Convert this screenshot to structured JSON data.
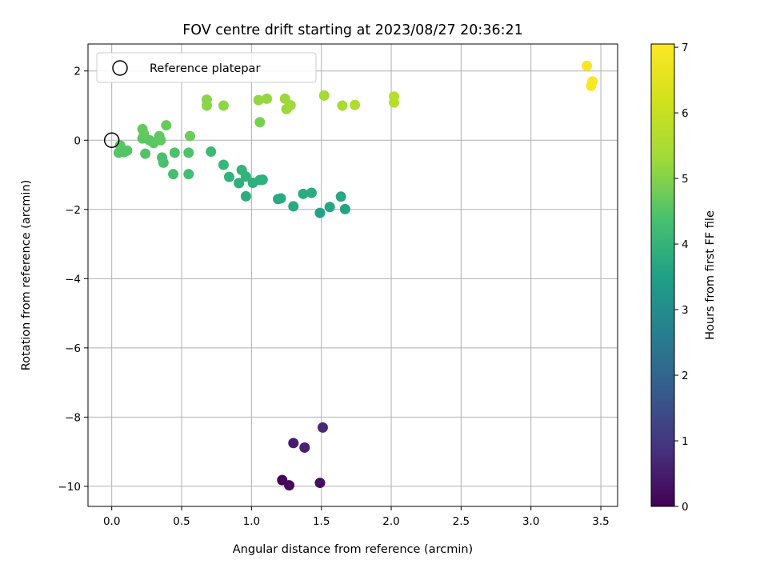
{
  "chart_data": {
    "type": "scatter",
    "title": "FOV centre drift starting at 2023/08/27 20:36:21",
    "xlabel": "Angular distance from reference (arcmin)",
    "ylabel": "Rotation from reference (arcmin)",
    "xlim": [
      -0.17,
      3.62
    ],
    "ylim": [
      -10.58,
      2.78
    ],
    "xticks": [
      0.0,
      0.5,
      1.0,
      1.5,
      2.0,
      2.5,
      3.0,
      3.5
    ],
    "xtick_labels": [
      "0.0",
      "0.5",
      "1.0",
      "1.5",
      "2.0",
      "2.5",
      "3.0",
      "3.5"
    ],
    "yticks": [
      -10,
      -8,
      -6,
      -4,
      -2,
      0,
      2
    ],
    "ytick_labels": [
      "−10",
      "−8",
      "−6",
      "−4",
      "−2",
      "0",
      "2"
    ],
    "grid": true,
    "legend": {
      "position": "top-left",
      "label": "Reference platepar"
    },
    "reference_point": {
      "x": 0.0,
      "y": 0.0
    },
    "colorbar": {
      "label": "Hours from first FF file",
      "colormap": "viridis",
      "range": [
        0,
        7.05
      ],
      "ticks": [
        0,
        1,
        2,
        3,
        4,
        5,
        6,
        7
      ],
      "tick_labels": [
        "0",
        "1",
        "2",
        "3",
        "4",
        "5",
        "6",
        "7"
      ]
    },
    "points": [
      {
        "x": 1.22,
        "y": -9.82,
        "t": 0.05
      },
      {
        "x": 1.27,
        "y": -9.97,
        "t": 0.15
      },
      {
        "x": 1.49,
        "y": -9.9,
        "t": 0.3
      },
      {
        "x": 1.3,
        "y": -8.75,
        "t": 0.55
      },
      {
        "x": 1.38,
        "y": -8.88,
        "t": 0.65
      },
      {
        "x": 1.51,
        "y": -8.3,
        "t": 0.85
      },
      {
        "x": 1.49,
        "y": -2.1,
        "t": 4.05
      },
      {
        "x": 1.67,
        "y": -1.99,
        "t": 4.1
      },
      {
        "x": 1.56,
        "y": -1.93,
        "t": 4.15
      },
      {
        "x": 1.64,
        "y": -1.63,
        "t": 4.2
      },
      {
        "x": 1.3,
        "y": -1.91,
        "t": 4.25
      },
      {
        "x": 1.21,
        "y": -1.68,
        "t": 4.3
      },
      {
        "x": 1.19,
        "y": -1.7,
        "t": 4.3
      },
      {
        "x": 1.37,
        "y": -1.55,
        "t": 4.35
      },
      {
        "x": 1.43,
        "y": -1.52,
        "t": 4.35
      },
      {
        "x": 0.96,
        "y": -1.62,
        "t": 4.4
      },
      {
        "x": 0.91,
        "y": -1.24,
        "t": 4.45
      },
      {
        "x": 1.01,
        "y": -1.23,
        "t": 4.45
      },
      {
        "x": 1.06,
        "y": -1.15,
        "t": 4.5
      },
      {
        "x": 1.08,
        "y": -1.14,
        "t": 4.5
      },
      {
        "x": 0.96,
        "y": -1.05,
        "t": 4.55
      },
      {
        "x": 0.84,
        "y": -1.06,
        "t": 4.6
      },
      {
        "x": 0.93,
        "y": -0.86,
        "t": 4.6
      },
      {
        "x": 0.8,
        "y": -0.71,
        "t": 4.7
      },
      {
        "x": 0.71,
        "y": -0.33,
        "t": 4.8
      },
      {
        "x": 0.55,
        "y": -0.98,
        "t": 4.9
      },
      {
        "x": 0.44,
        "y": -0.98,
        "t": 4.95
      },
      {
        "x": 0.37,
        "y": -0.65,
        "t": 5.0
      },
      {
        "x": 0.36,
        "y": -0.5,
        "t": 5.0
      },
      {
        "x": 0.45,
        "y": -0.36,
        "t": 5.05
      },
      {
        "x": 0.55,
        "y": -0.36,
        "t": 5.05
      },
      {
        "x": 0.24,
        "y": -0.39,
        "t": 5.1
      },
      {
        "x": 0.05,
        "y": -0.36,
        "t": 5.15
      },
      {
        "x": 0.09,
        "y": -0.34,
        "t": 5.15
      },
      {
        "x": 0.11,
        "y": -0.3,
        "t": 5.15
      },
      {
        "x": 0.06,
        "y": -0.15,
        "t": 5.2
      },
      {
        "x": 0.22,
        "y": 0.05,
        "t": 5.25
      },
      {
        "x": 0.27,
        "y": 0.0,
        "t": 5.25
      },
      {
        "x": 0.3,
        "y": -0.08,
        "t": 5.25
      },
      {
        "x": 0.35,
        "y": 0.0,
        "t": 5.3
      },
      {
        "x": 0.34,
        "y": 0.12,
        "t": 5.3
      },
      {
        "x": 0.22,
        "y": 0.32,
        "t": 5.35
      },
      {
        "x": 0.23,
        "y": 0.18,
        "t": 5.35
      },
      {
        "x": 0.39,
        "y": 0.43,
        "t": 5.4
      },
      {
        "x": 0.56,
        "y": 0.12,
        "t": 5.45
      },
      {
        "x": 1.06,
        "y": 0.52,
        "t": 5.6
      },
      {
        "x": 0.68,
        "y": 1.17,
        "t": 5.8
      },
      {
        "x": 0.68,
        "y": 1.0,
        "t": 5.8
      },
      {
        "x": 0.8,
        "y": 1.0,
        "t": 5.85
      },
      {
        "x": 1.05,
        "y": 1.16,
        "t": 5.9
      },
      {
        "x": 1.11,
        "y": 1.2,
        "t": 5.95
      },
      {
        "x": 1.24,
        "y": 1.2,
        "t": 6.0
      },
      {
        "x": 1.25,
        "y": 0.9,
        "t": 6.0
      },
      {
        "x": 1.28,
        "y": 1.01,
        "t": 6.05
      },
      {
        "x": 1.52,
        "y": 1.29,
        "t": 6.1
      },
      {
        "x": 1.65,
        "y": 1.0,
        "t": 6.15
      },
      {
        "x": 1.74,
        "y": 1.02,
        "t": 6.2
      },
      {
        "x": 2.02,
        "y": 1.26,
        "t": 6.3
      },
      {
        "x": 2.02,
        "y": 1.09,
        "t": 6.3
      },
      {
        "x": 3.4,
        "y": 2.15,
        "t": 7.0
      },
      {
        "x": 3.44,
        "y": 1.7,
        "t": 7.02
      },
      {
        "x": 3.43,
        "y": 1.57,
        "t": 7.04
      }
    ]
  }
}
